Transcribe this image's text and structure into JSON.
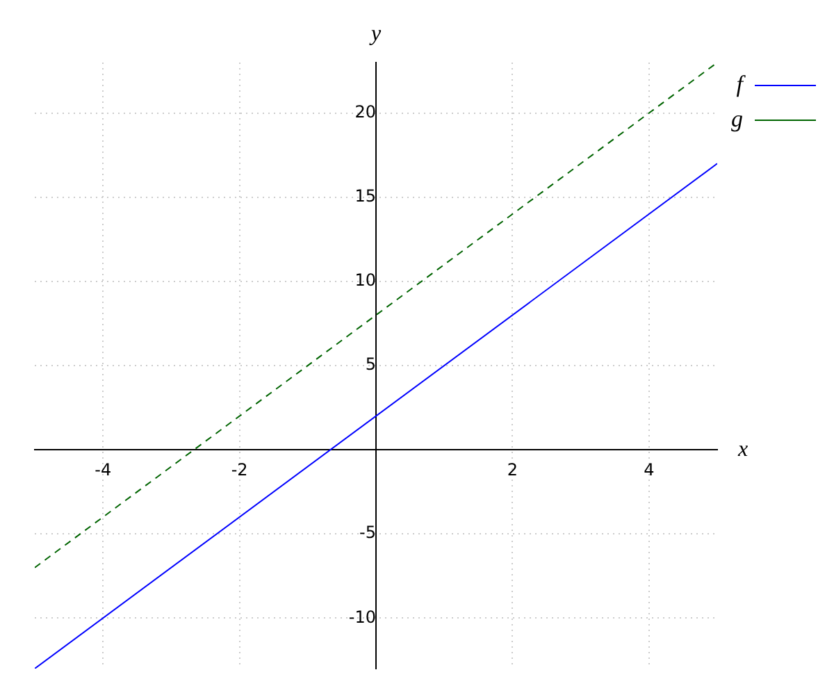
{
  "chart_data": {
    "type": "line",
    "xlabel": "x",
    "ylabel": "y",
    "x": [
      -5,
      5
    ],
    "series": [
      {
        "name": "f",
        "color": "#0000ff",
        "values": [
          -13,
          17
        ],
        "line_style": "solid"
      },
      {
        "name": "g",
        "color": "#006400",
        "values": [
          -7,
          23
        ],
        "line_style": "dashed"
      }
    ],
    "xlim": [
      -5,
      5
    ],
    "ylim": [
      -13,
      23
    ],
    "xticks": [
      -4,
      -2,
      2,
      4
    ],
    "yticks": [
      -10,
      -5,
      5,
      10,
      15,
      20
    ],
    "grid": true,
    "legend": "top right",
    "marker": "none"
  }
}
